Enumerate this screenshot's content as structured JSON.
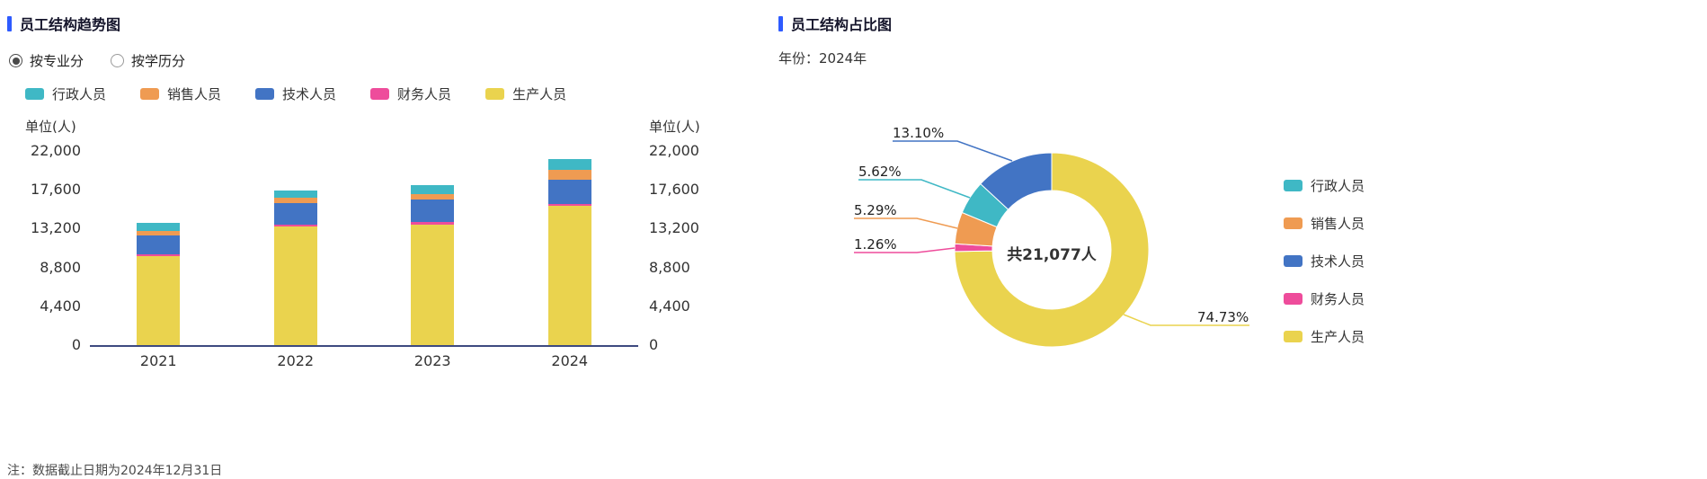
{
  "accent": "#2e5bff",
  "axis_color": "#3d4a80",
  "palette": {
    "行政人员": "#3fb8c5",
    "销售人员": "#ef9b52",
    "技术人员": "#4274c4",
    "财务人员": "#ee4c9b",
    "生产人员": "#ead34e"
  },
  "left_chart": {
    "title": "员工结构趋势图",
    "radios": [
      {
        "label": "按专业分",
        "selected": true
      },
      {
        "label": "按学历分",
        "selected": false
      }
    ],
    "legend": [
      "行政人员",
      "销售人员",
      "技术人员",
      "财务人员",
      "生产人员"
    ],
    "unit_label": "单位(人)",
    "note": "注：数据截止日期为2024年12月31日"
  },
  "right_chart": {
    "title": "员工结构占比图",
    "year_label": "年份：2024年",
    "center_label": "共21,077人",
    "legend": [
      "行政人员",
      "销售人员",
      "技术人员",
      "财务人员",
      "生产人员"
    ]
  },
  "chart_data": [
    {
      "type": "bar",
      "stacked": true,
      "title": "员工结构趋势图",
      "categories": [
        "2021",
        "2022",
        "2023",
        "2024"
      ],
      "series": [
        {
          "name": "生产人员",
          "values": [
            10100,
            13400,
            13700,
            15751
          ]
        },
        {
          "name": "财务人员",
          "values": [
            190,
            210,
            220,
            266
          ]
        },
        {
          "name": "技术人员",
          "values": [
            2150,
            2480,
            2560,
            2761
          ]
        },
        {
          "name": "销售人员",
          "values": [
            510,
            620,
            650,
            1115
          ]
        },
        {
          "name": "行政人员",
          "values": [
            900,
            850,
            1020,
            1185
          ]
        }
      ],
      "ylabel": "单位(人)",
      "ylim": [
        0,
        22000
      ],
      "yticks": [
        0,
        4400,
        8800,
        13200,
        17600,
        22000
      ],
      "ytick_labels": [
        "0",
        "4,400",
        "8,800",
        "13,200",
        "17,600",
        "22,000"
      ],
      "legend_position": "top",
      "grid": false
    },
    {
      "type": "pie",
      "donut": true,
      "title": "员工结构占比图",
      "year": "2024",
      "center_label": "共21,077人",
      "total": 21077,
      "slices": [
        {
          "name": "生产人员",
          "pct": 74.73,
          "label": "74.73%"
        },
        {
          "name": "财务人员",
          "pct": 1.26,
          "label": "1.26%"
        },
        {
          "name": "销售人员",
          "pct": 5.29,
          "label": "5.29%"
        },
        {
          "name": "行政人员",
          "pct": 5.62,
          "label": "5.62%"
        },
        {
          "name": "技术人员",
          "pct": 13.1,
          "label": "13.10%"
        }
      ],
      "legend_position": "right"
    }
  ]
}
